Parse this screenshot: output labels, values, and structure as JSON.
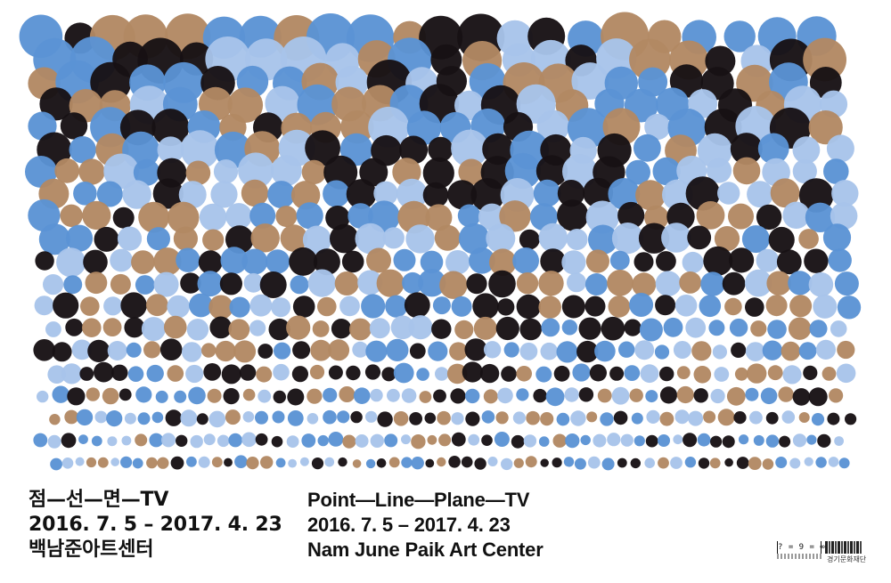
{
  "poster": {
    "palette": {
      "light_blue": "#a8c4ea",
      "mid_blue": "#5b93d4",
      "brown": "#b28863",
      "black": "#171114",
      "background": "#ffffff"
    },
    "korean": {
      "title": "점—선—면—TV",
      "dates": "2016. 7. 5 – 2017. 4. 23",
      "venue": "백남준아트센터"
    },
    "english": {
      "title": "Point—Line—Plane—TV",
      "dates": "2016. 7. 5 – 2017. 4. 23",
      "venue": "Nam June Paik Art Center"
    },
    "logos": {
      "mark_a": "? = 9 = ∞",
      "mark_b_sub": "경기문화재단",
      "icons": [
        "paik-art-center-logo-icon",
        "gyeonggi-cultural-foundation-logo-icon"
      ]
    }
  }
}
